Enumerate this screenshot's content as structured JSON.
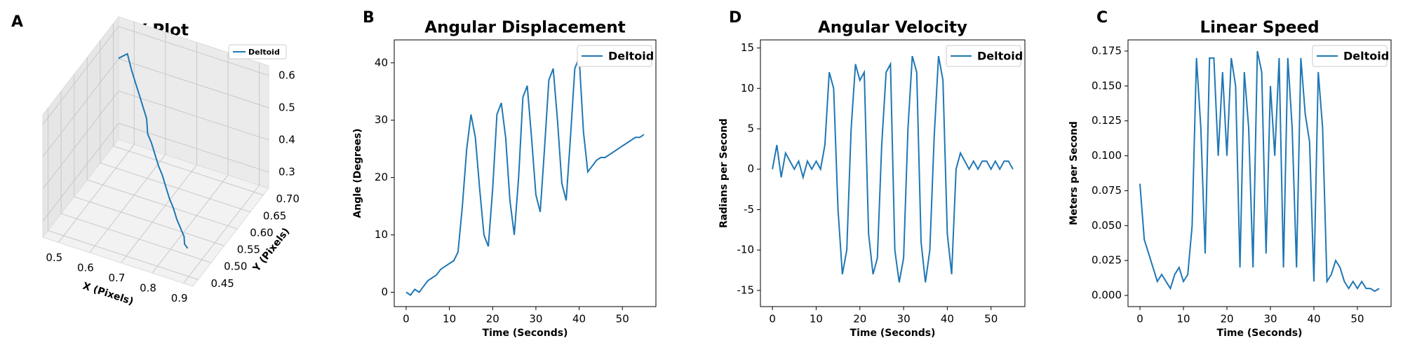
{
  "chart_data": [
    {
      "type": "line3d",
      "panel_label": "A",
      "title": "XY Plot",
      "xlabel": "X (Pixels)",
      "ylabel": "Y (Pixels)",
      "legend": "upper right",
      "series": [
        {
          "name": "Deltoid",
          "color": "#1f77b4",
          "x": [
            0.5,
            0.52,
            0.55,
            0.57,
            0.6,
            0.62,
            0.64,
            0.66,
            0.68,
            0.7,
            0.72,
            0.74,
            0.76,
            0.78,
            0.8,
            0.82,
            0.84,
            0.86,
            0.87,
            0.88
          ],
          "y": [
            0.66,
            0.67,
            0.65,
            0.64,
            0.62,
            0.61,
            0.6,
            0.58,
            0.57,
            0.56,
            0.55,
            0.54,
            0.53,
            0.52,
            0.51,
            0.5,
            0.49,
            0.48,
            0.47,
            0.47
          ],
          "z": [
            0.58,
            0.59,
            0.57,
            0.55,
            0.54,
            0.52,
            0.5,
            0.48,
            0.47,
            0.45,
            0.43,
            0.42,
            0.4,
            0.38,
            0.37,
            0.35,
            0.34,
            0.33,
            0.32,
            0.31
          ]
        }
      ],
      "xlim": [
        0.45,
        0.93
      ],
      "ylim": [
        0.43,
        0.72
      ],
      "zlim": [
        0.25,
        0.63
      ],
      "xticks": [
        0.5,
        0.6,
        0.7,
        0.8,
        0.9
      ],
      "yticks": [
        0.45,
        {
          "value": 0.5,
          "label": "0.50"
        },
        0.55,
        {
          "value": 0.6,
          "label": "0.60"
        },
        0.65,
        {
          "value": 0.7,
          "label": "0.70"
        }
      ],
      "zticks": [
        0.3,
        0.4,
        0.5,
        0.6
      ],
      "grid": true
    },
    {
      "type": "line",
      "panel_label": "B",
      "title": "Angular Displacement",
      "xlabel": "Time (Seconds)",
      "ylabel": "Angle (Degrees)",
      "legend": "upper right",
      "x": [
        0,
        1,
        2,
        3,
        4,
        5,
        6,
        7,
        8,
        9,
        10,
        11,
        12,
        13,
        14,
        15,
        16,
        17,
        18,
        19,
        20,
        21,
        22,
        23,
        24,
        25,
        26,
        27,
        28,
        29,
        30,
        31,
        32,
        33,
        34,
        35,
        36,
        37,
        38,
        39,
        40,
        41,
        42,
        43,
        44,
        45,
        46,
        47,
        48,
        49,
        50,
        51,
        52,
        53,
        54,
        55
      ],
      "series": [
        {
          "name": "Deltoid",
          "color": "#1f77b4",
          "values": [
            0,
            -0.5,
            0.5,
            0,
            1,
            2,
            2.5,
            3,
            4,
            4.5,
            5,
            5.5,
            7,
            15,
            25,
            31,
            27,
            18,
            10,
            8,
            18,
            31,
            33,
            27,
            16,
            10,
            20,
            34,
            36,
            27,
            17,
            14,
            25,
            37,
            39,
            30,
            19,
            16,
            27,
            39,
            41,
            28,
            21,
            22,
            23,
            23.5,
            23.5,
            24,
            24.5,
            25,
            25.5,
            26,
            26.5,
            27,
            27,
            27.5
          ]
        }
      ],
      "xlim": [
        -2.75,
        57.75
      ],
      "ylim": [
        -2.5,
        44
      ],
      "xticks": [
        0,
        10,
        20,
        30,
        40,
        50
      ],
      "yticks": [
        0,
        10,
        20,
        30,
        40
      ]
    },
    {
      "type": "line",
      "panel_label": "D",
      "title": "Angular Velocity",
      "xlabel": "Time (Seconds)",
      "ylabel": "Radians per Second",
      "legend": "upper right",
      "x": [
        0,
        1,
        2,
        3,
        4,
        5,
        6,
        7,
        8,
        9,
        10,
        11,
        12,
        13,
        14,
        15,
        16,
        17,
        18,
        19,
        20,
        21,
        22,
        23,
        24,
        25,
        26,
        27,
        28,
        29,
        30,
        31,
        32,
        33,
        34,
        35,
        36,
        37,
        38,
        39,
        40,
        41,
        42,
        43,
        44,
        45,
        46,
        47,
        48,
        49,
        50,
        51,
        52,
        53,
        54,
        55
      ],
      "series": [
        {
          "name": "Deltoid",
          "color": "#1f77b4",
          "values": [
            0,
            3,
            -1,
            2,
            1,
            0,
            1,
            -1,
            1,
            0,
            1,
            0,
            3,
            12,
            10,
            -5,
            -13,
            -10,
            5,
            13,
            11,
            12,
            -8,
            -13,
            -11,
            3,
            12,
            13,
            -10,
            -14,
            -11,
            5,
            14,
            12,
            -9,
            -14,
            -10,
            4,
            14,
            11,
            -8,
            -13,
            0,
            2,
            1,
            0,
            1,
            0,
            1,
            1,
            0,
            1,
            0,
            1,
            1,
            0
          ]
        }
      ],
      "xlim": [
        -2.75,
        57.75
      ],
      "ylim": [
        -17,
        16
      ],
      "xticks": [
        0,
        10,
        20,
        30,
        40,
        50
      ],
      "yticks": [
        -15,
        -10,
        -5,
        0,
        5,
        10,
        15
      ]
    },
    {
      "type": "line",
      "panel_label": "C",
      "title": "Linear Speed",
      "xlabel": "Time (Seconds)",
      "ylabel": "Meters per Second",
      "legend": "upper right",
      "x": [
        0,
        1,
        2,
        3,
        4,
        5,
        6,
        7,
        8,
        9,
        10,
        11,
        12,
        13,
        14,
        15,
        16,
        17,
        18,
        19,
        20,
        21,
        22,
        23,
        24,
        25,
        26,
        27,
        28,
        29,
        30,
        31,
        32,
        33,
        34,
        35,
        36,
        37,
        38,
        39,
        40,
        41,
        42,
        43,
        44,
        45,
        46,
        47,
        48,
        49,
        50,
        51,
        52,
        53,
        54,
        55
      ],
      "series": [
        {
          "name": "Deltoid",
          "color": "#1f77b4",
          "values": [
            0.08,
            0.04,
            0.03,
            0.02,
            0.01,
            0.015,
            0.01,
            0.005,
            0.015,
            0.02,
            0.01,
            0.015,
            0.05,
            0.17,
            0.12,
            0.03,
            0.17,
            0.17,
            0.1,
            0.16,
            0.1,
            0.17,
            0.15,
            0.02,
            0.16,
            0.12,
            0.02,
            0.175,
            0.16,
            0.03,
            0.15,
            0.1,
            0.17,
            0.02,
            0.17,
            0.12,
            0.02,
            0.17,
            0.13,
            0.11,
            0.01,
            0.16,
            0.12,
            0.01,
            0.015,
            0.025,
            0.02,
            0.01,
            0.005,
            0.01,
            0.005,
            0.01,
            0.005,
            0.005,
            0.003,
            0.005
          ]
        }
      ],
      "xlim": [
        -2.75,
        57.75
      ],
      "ylim": [
        -0.008,
        0.183
      ],
      "xticks": [
        0,
        10,
        20,
        30,
        40,
        50
      ],
      "yticks": [
        {
          "value": 0,
          "label": "0.000"
        },
        0.025,
        {
          "value": 0.05,
          "label": "0.050"
        },
        0.075,
        {
          "value": 0.1,
          "label": "0.100"
        },
        0.125,
        {
          "value": 0.15,
          "label": "0.150"
        },
        0.175
      ]
    }
  ]
}
